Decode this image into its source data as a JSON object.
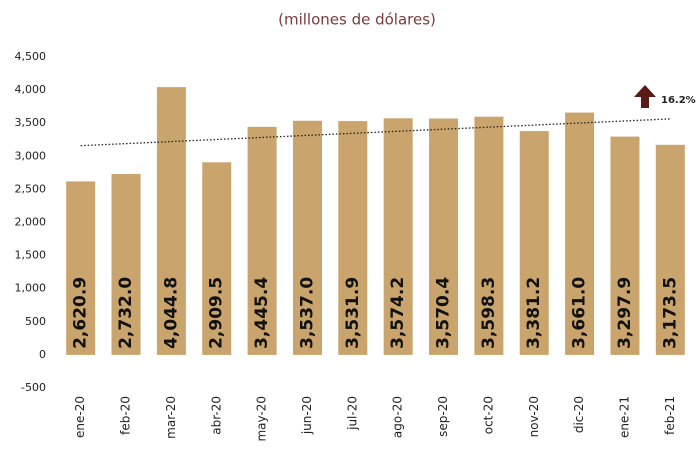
{
  "chart_data": {
    "type": "bar",
    "subtitle": "(millones de dólares)",
    "categories": [
      "ene-20",
      "feb-20",
      "mar-20",
      "abr-20",
      "may-20",
      "jun-20",
      "jul-20",
      "ago-20",
      "sep-20",
      "oct-20",
      "nov-20",
      "dic-20",
      "ene-21",
      "feb-21"
    ],
    "values": [
      2620.9,
      2732.0,
      4044.8,
      2909.5,
      3445.4,
      3537.0,
      3531.9,
      3574.2,
      3570.4,
      3598.3,
      3381.2,
      3661.0,
      3297.9,
      3173.5
    ],
    "value_labels": [
      "2,620.9",
      "2,732.0",
      "4,044.8",
      "2,909.5",
      "3,445.4",
      "3,537.0",
      "3,531.9",
      "3,574.2",
      "3,570.4",
      "3,598.3",
      "3,381.2",
      "3,661.0",
      "3,297.9",
      "3,173.5"
    ],
    "color": "#c9a46c",
    "ylim": [
      -500,
      4500
    ],
    "yticks": [
      -500,
      0,
      500,
      {
        "value": 1000,
        "label": "1,000"
      },
      {
        "value": 1500,
        "label": "1,500"
      },
      {
        "value": 2000,
        "label": "2,000"
      },
      {
        "value": 2500,
        "label": "2,500"
      },
      {
        "value": 3000,
        "label": "3,000"
      },
      {
        "value": 3500,
        "label": "3,500"
      },
      {
        "value": 4000,
        "label": "4,000"
      },
      {
        "value": 4500,
        "label": "4,500"
      }
    ],
    "trendline": true,
    "annotation": "16.2%"
  }
}
